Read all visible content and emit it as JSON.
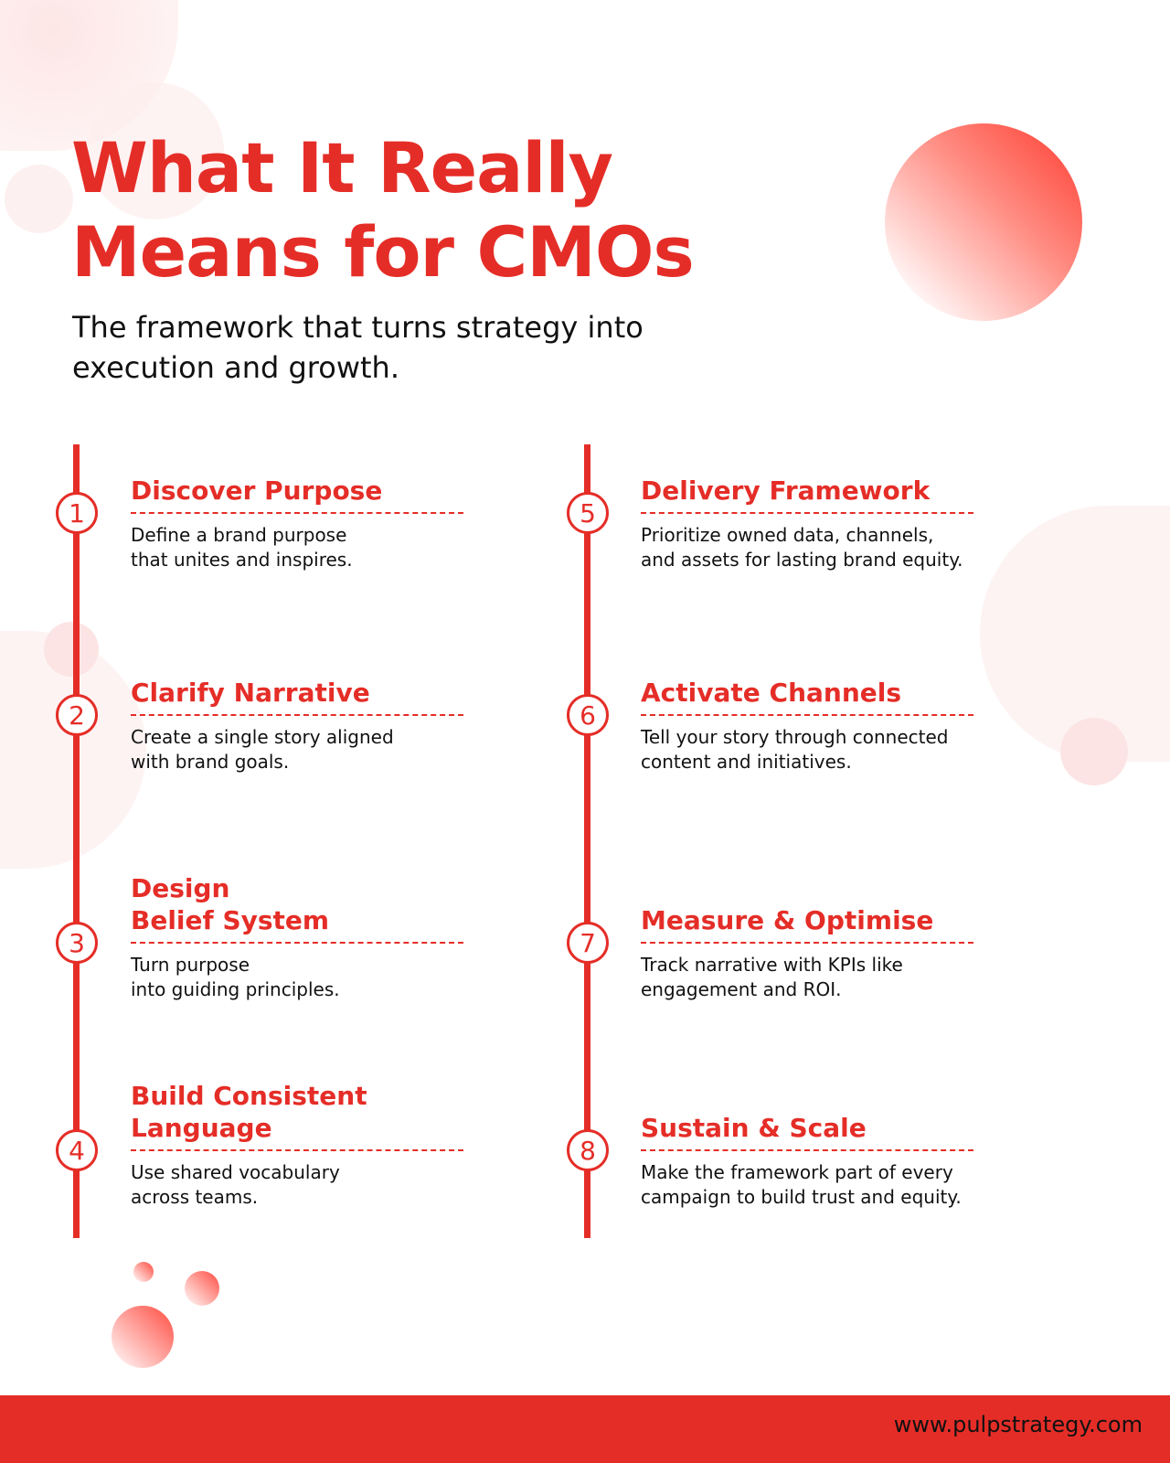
{
  "header": {
    "title_line1": "What It Really",
    "title_line2": "Means for CMOs",
    "subtitle_line1": "The framework that turns strategy into",
    "subtitle_line2": "execution and growth."
  },
  "steps": [
    {
      "number": "1",
      "title": "Discover Purpose",
      "desc1": "Define a brand purpose",
      "desc2": "that unites and inspires."
    },
    {
      "number": "2",
      "title": "Clarify Narrative",
      "desc1": "Create a single story aligned",
      "desc2": "with brand goals."
    },
    {
      "number": "3",
      "title": "Design\nBelief System",
      "desc1": "Turn purpose",
      "desc2": "into guiding principles."
    },
    {
      "number": "4",
      "title": "Build Consistent\nLanguage",
      "desc1": "Use shared vocabulary",
      "desc2": "across teams."
    },
    {
      "number": "5",
      "title": "Delivery Framework",
      "desc1": "Prioritize owned data, channels,",
      "desc2": "and assets for lasting brand equity."
    },
    {
      "number": "6",
      "title": "Activate Channels",
      "desc1": "Tell your story through connected",
      "desc2": "content and initiatives."
    },
    {
      "number": "7",
      "title": "Measure & Optimise",
      "desc1": "Track narrative with KPIs like",
      "desc2": "engagement and ROI."
    },
    {
      "number": "8",
      "title": "Sustain & Scale",
      "desc1": "Make the framework part of every",
      "desc2": "campaign to build trust and equity."
    }
  ],
  "footer": {
    "url": "www.pulpstrategy.com"
  },
  "colors": {
    "accent": "#e52d27"
  }
}
